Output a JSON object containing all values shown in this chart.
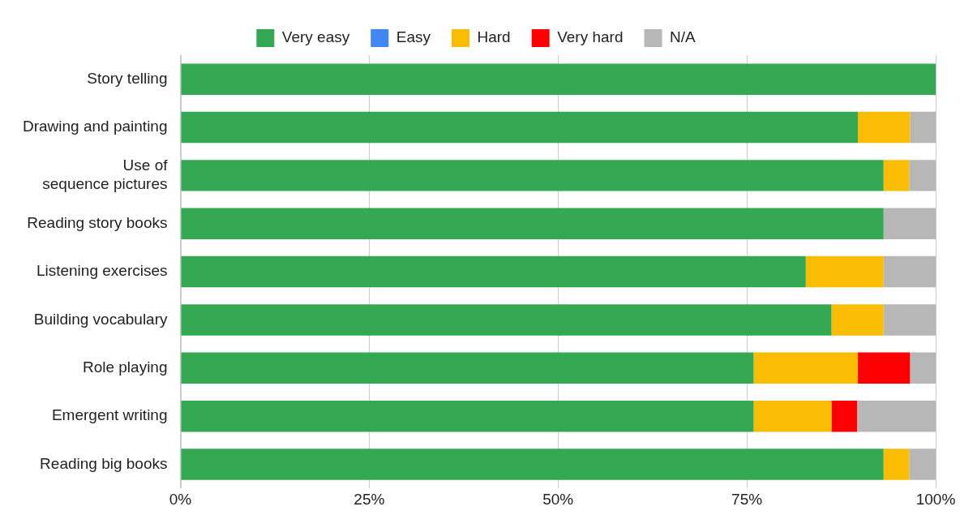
{
  "chart_data": {
    "type": "bar",
    "orientation": "horizontal",
    "stacked": true,
    "legend": "top",
    "grid": "x",
    "categories": [
      "Story telling",
      "Drawing and painting",
      "Use of sequence pictures",
      "Reading story books",
      "Listening exercises",
      "Building vocabulary",
      "Role playing",
      "Emergent writing",
      "Reading big books"
    ],
    "xlim": [
      0,
      100
    ],
    "xticks": [
      {
        "value": 0,
        "label": "0%"
      },
      {
        "value": 25,
        "label": "25%"
      },
      {
        "value": 50,
        "label": "50%"
      },
      {
        "value": 75,
        "label": "75%"
      },
      {
        "value": 100,
        "label": "100%"
      }
    ],
    "series": [
      {
        "name": "Very easy",
        "color": "#34a853",
        "values": [
          100,
          89.7,
          93.1,
          93.1,
          82.8,
          86.2,
          75.9,
          75.9,
          93.1
        ]
      },
      {
        "name": "Easy",
        "color": "#4285f4",
        "values": [
          0,
          0,
          0,
          0,
          0,
          0,
          0,
          0,
          0
        ]
      },
      {
        "name": "Hard",
        "color": "#fbbc04",
        "values": [
          0,
          6.9,
          3.4,
          0,
          10.3,
          6.9,
          13.8,
          10.3,
          3.4
        ]
      },
      {
        "name": "Very hard",
        "color": "#ff0000",
        "values": [
          0,
          0,
          0,
          0,
          0,
          0,
          6.9,
          3.4,
          0
        ]
      },
      {
        "name": "N/A",
        "color": "#b7b7b7",
        "values": [
          0,
          3.4,
          3.5,
          6.9,
          6.9,
          6.9,
          3.4,
          10.4,
          3.5
        ]
      }
    ]
  }
}
